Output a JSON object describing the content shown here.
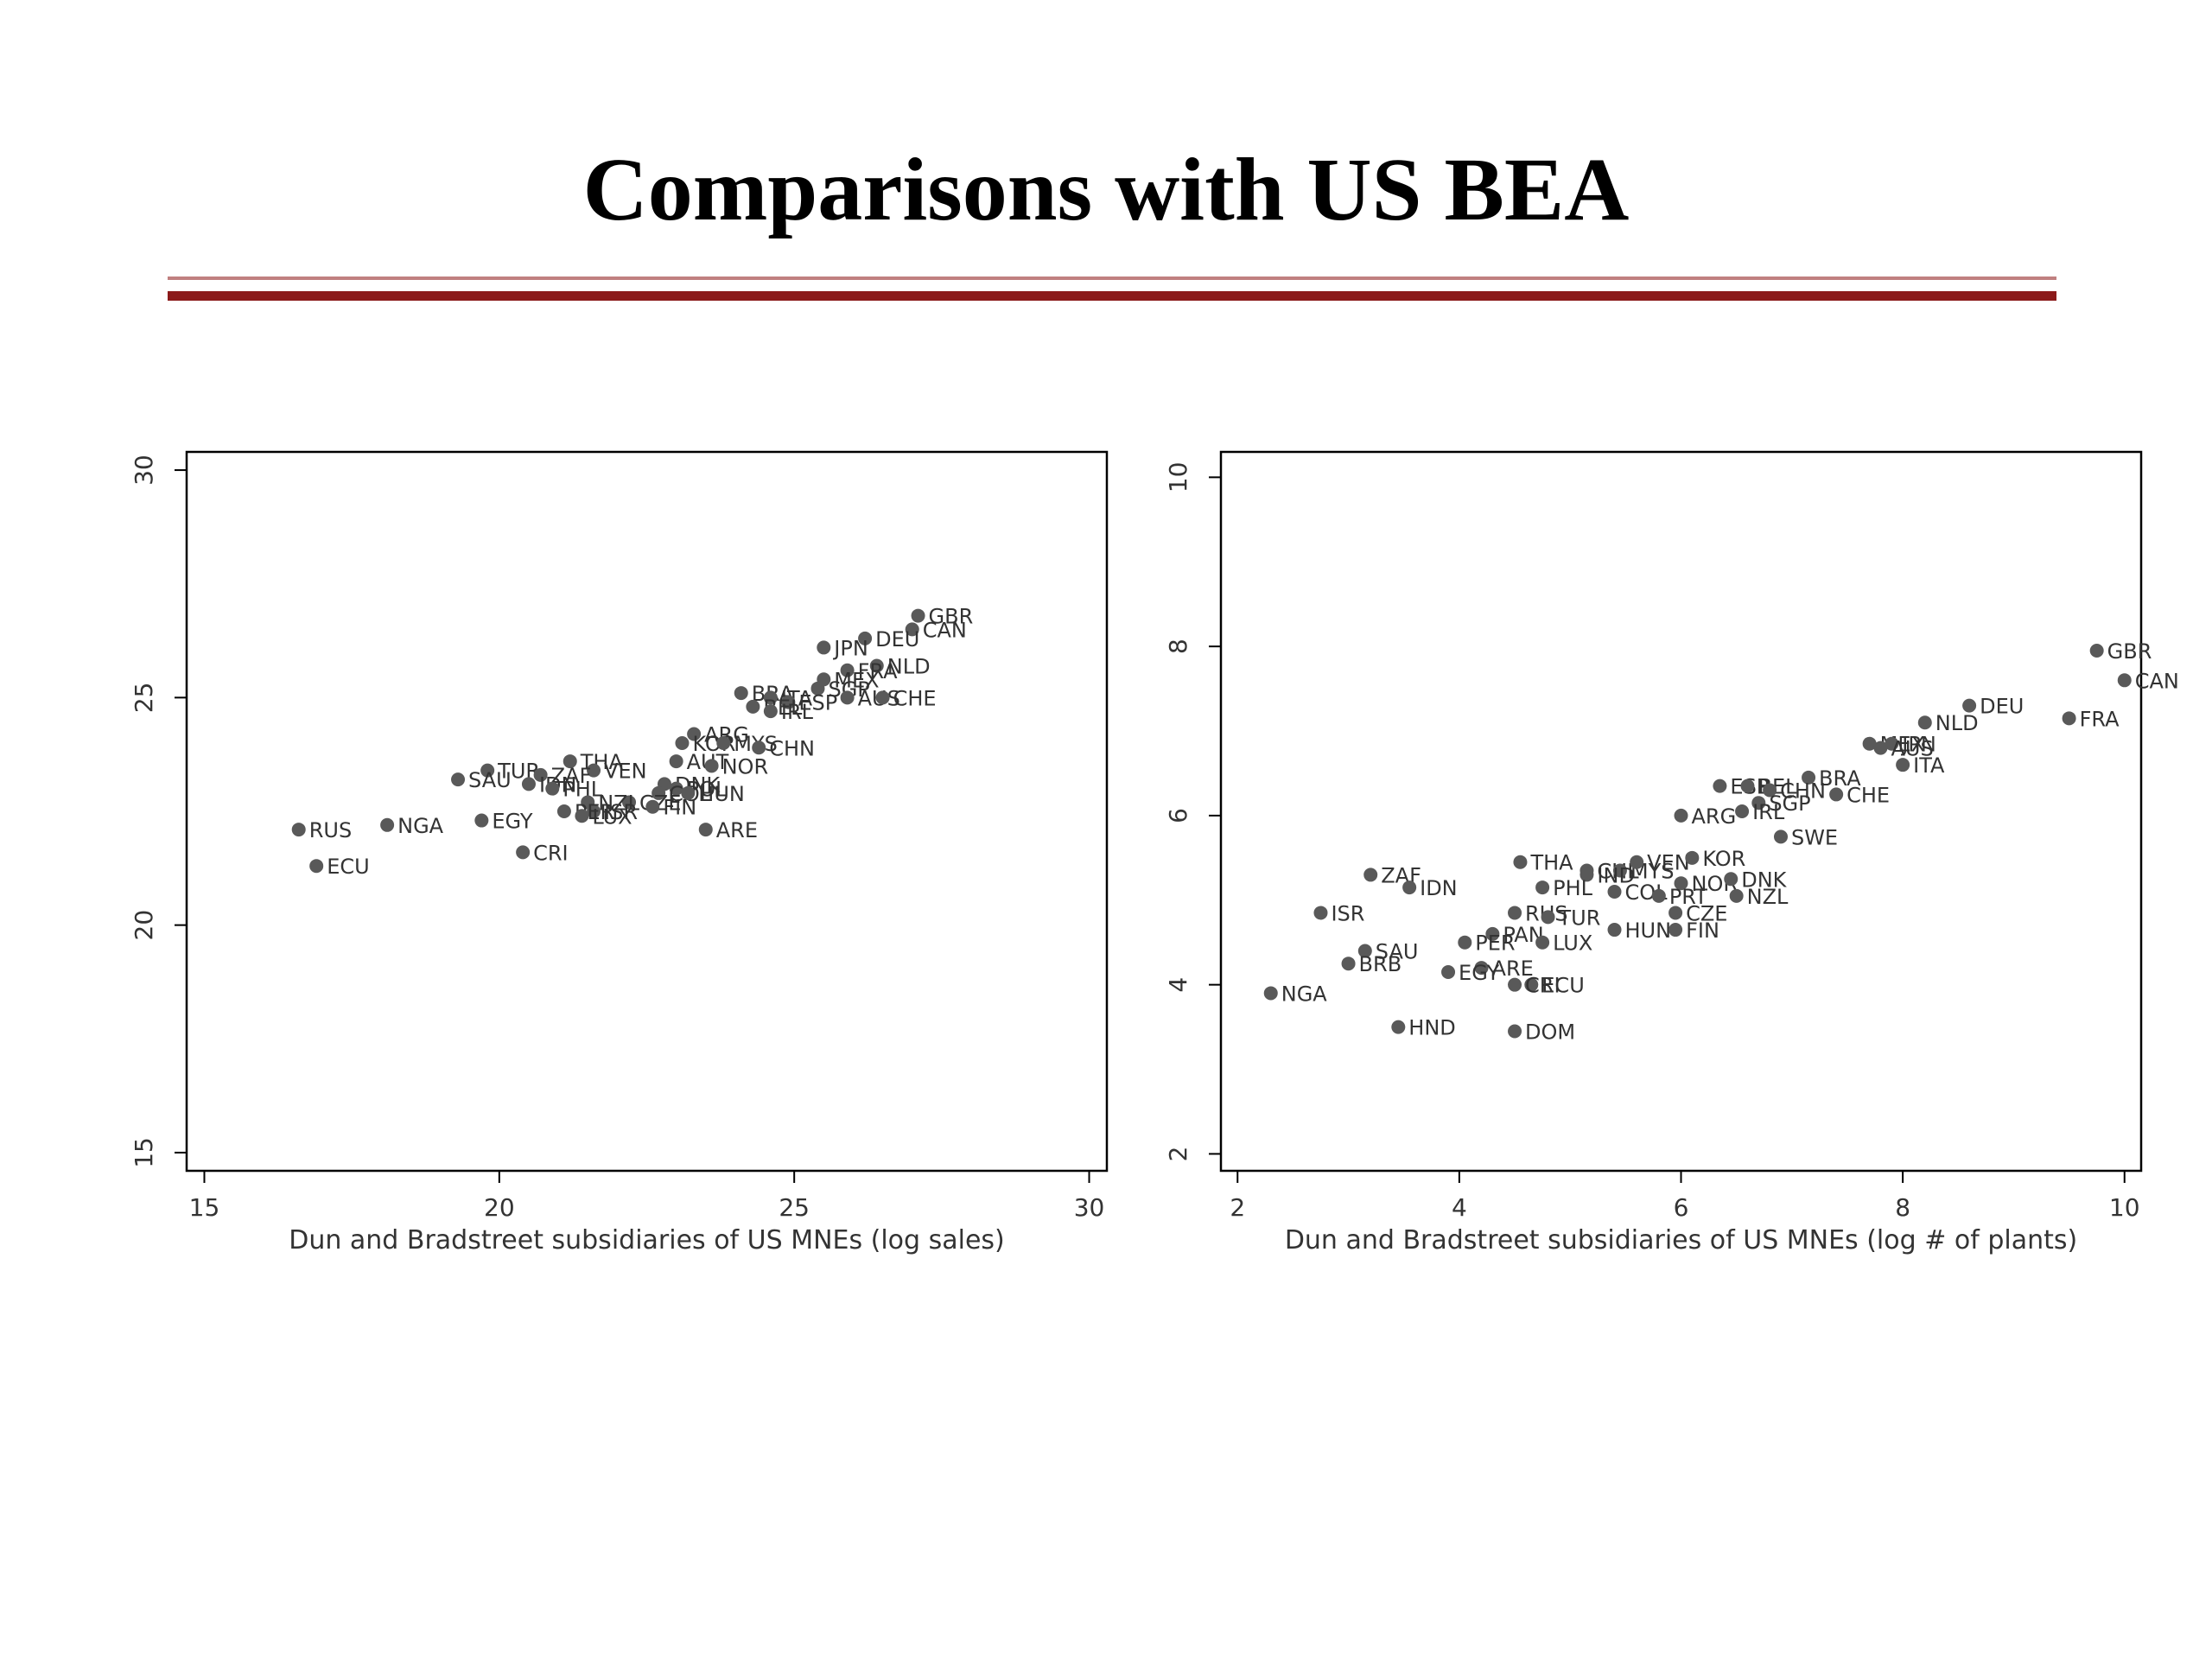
{
  "slide": {
    "title": "Comparisons with US BEA",
    "accent_color": "#8b1a1a",
    "thin_rule_color": "#c08080"
  },
  "chart_data": [
    {
      "type": "scatter",
      "title": "",
      "xlabel": "Dun and Bradstreet subsidiaries of US MNEs (log sales)",
      "ylabel": "",
      "xlim": [
        14.7,
        30.3
      ],
      "ylim": [
        14.6,
        30.4
      ],
      "xticks": [
        15,
        20,
        25,
        30
      ],
      "yticks": [
        15,
        20,
        25,
        30
      ],
      "grid": false,
      "marker_color": "#595959",
      "points": [
        {
          "x": 27.1,
          "y": 26.8,
          "label": "GBR"
        },
        {
          "x": 27.0,
          "y": 26.5,
          "label": "CAN"
        },
        {
          "x": 26.2,
          "y": 26.3,
          "label": "DEU"
        },
        {
          "x": 25.5,
          "y": 26.1,
          "label": "JPN"
        },
        {
          "x": 26.4,
          "y": 25.7,
          "label": "NLD"
        },
        {
          "x": 25.9,
          "y": 25.6,
          "label": "FRA"
        },
        {
          "x": 25.5,
          "y": 25.4,
          "label": "MEX"
        },
        {
          "x": 25.4,
          "y": 25.2,
          "label": "SGP"
        },
        {
          "x": 25.9,
          "y": 25.0,
          "label": "AUS"
        },
        {
          "x": 26.5,
          "y": 25.0,
          "label": "CHE"
        },
        {
          "x": 24.1,
          "y": 25.1,
          "label": "BRA"
        },
        {
          "x": 24.6,
          "y": 25.0,
          "label": "ITA"
        },
        {
          "x": 24.9,
          "y": 24.9,
          "label": "ESP"
        },
        {
          "x": 24.3,
          "y": 24.8,
          "label": "BEL"
        },
        {
          "x": 24.6,
          "y": 24.7,
          "label": "IRL"
        },
        {
          "x": 23.3,
          "y": 24.2,
          "label": "ARG"
        },
        {
          "x": 23.1,
          "y": 24.0,
          "label": "KOR"
        },
        {
          "x": 23.8,
          "y": 24.0,
          "label": "MYS"
        },
        {
          "x": 24.4,
          "y": 23.9,
          "label": "CHN"
        },
        {
          "x": 23.0,
          "y": 23.6,
          "label": "AUT"
        },
        {
          "x": 23.6,
          "y": 23.5,
          "label": "NOR"
        },
        {
          "x": 21.2,
          "y": 23.6,
          "label": "THA"
        },
        {
          "x": 21.6,
          "y": 23.4,
          "label": "VEN"
        },
        {
          "x": 19.8,
          "y": 23.4,
          "label": "TUR"
        },
        {
          "x": 20.7,
          "y": 23.3,
          "label": "ZAF"
        },
        {
          "x": 19.3,
          "y": 23.2,
          "label": "SAU"
        },
        {
          "x": 20.5,
          "y": 23.1,
          "label": "IDN"
        },
        {
          "x": 20.9,
          "y": 23.0,
          "label": "PHL"
        },
        {
          "x": 22.8,
          "y": 23.1,
          "label": "DNK"
        },
        {
          "x": 23.0,
          "y": 23.0,
          "label": "POL"
        },
        {
          "x": 22.7,
          "y": 22.9,
          "label": "COL"
        },
        {
          "x": 23.2,
          "y": 22.9,
          "label": "HUN"
        },
        {
          "x": 22.2,
          "y": 22.7,
          "label": "CZE"
        },
        {
          "x": 22.6,
          "y": 22.6,
          "label": "FIN"
        },
        {
          "x": 21.5,
          "y": 22.7,
          "label": "NZL"
        },
        {
          "x": 21.6,
          "y": 22.5,
          "label": "ISR"
        },
        {
          "x": 21.1,
          "y": 22.5,
          "label": "PER"
        },
        {
          "x": 21.4,
          "y": 22.4,
          "label": "LUX"
        },
        {
          "x": 16.6,
          "y": 22.1,
          "label": "RUS"
        },
        {
          "x": 18.1,
          "y": 22.2,
          "label": "NGA"
        },
        {
          "x": 19.7,
          "y": 22.3,
          "label": "EGY"
        },
        {
          "x": 23.5,
          "y": 22.1,
          "label": "ARE"
        },
        {
          "x": 20.4,
          "y": 21.6,
          "label": "CRI"
        },
        {
          "x": 16.9,
          "y": 21.3,
          "label": "ECU"
        }
      ]
    },
    {
      "type": "scatter",
      "title": "",
      "xlabel": "Dun and Bradstreet subsidiaries of US MNEs (log # of plants)",
      "ylabel": "",
      "xlim": [
        1.85,
        10.15
      ],
      "ylim": [
        1.8,
        10.3
      ],
      "xticks": [
        2,
        4,
        6,
        8,
        10
      ],
      "yticks": [
        2,
        4,
        6,
        8,
        10
      ],
      "grid": false,
      "marker_color": "#595959",
      "points": [
        {
          "x": 9.75,
          "y": 7.95,
          "label": "GBR"
        },
        {
          "x": 10.0,
          "y": 7.6,
          "label": "CAN"
        },
        {
          "x": 9.5,
          "y": 7.15,
          "label": "FRA"
        },
        {
          "x": 8.6,
          "y": 7.3,
          "label": "DEU"
        },
        {
          "x": 8.2,
          "y": 7.1,
          "label": "NLD"
        },
        {
          "x": 7.7,
          "y": 6.85,
          "label": "MEX"
        },
        {
          "x": 7.9,
          "y": 6.85,
          "label": "JPN"
        },
        {
          "x": 7.8,
          "y": 6.8,
          "label": "AUS"
        },
        {
          "x": 8.0,
          "y": 6.6,
          "label": "ITA"
        },
        {
          "x": 7.15,
          "y": 6.45,
          "label": "BRA"
        },
        {
          "x": 7.4,
          "y": 6.25,
          "label": "CHE"
        },
        {
          "x": 6.35,
          "y": 6.35,
          "label": "ESP"
        },
        {
          "x": 6.6,
          "y": 6.35,
          "label": "BEL"
        },
        {
          "x": 6.8,
          "y": 6.3,
          "label": "CHN"
        },
        {
          "x": 6.7,
          "y": 6.15,
          "label": "SGP"
        },
        {
          "x": 6.0,
          "y": 6.0,
          "label": "ARG"
        },
        {
          "x": 6.55,
          "y": 6.05,
          "label": "IRL"
        },
        {
          "x": 6.9,
          "y": 5.75,
          "label": "SWE"
        },
        {
          "x": 4.55,
          "y": 5.45,
          "label": "THA"
        },
        {
          "x": 5.15,
          "y": 5.35,
          "label": "CHL"
        },
        {
          "x": 5.45,
          "y": 5.35,
          "label": "MYS"
        },
        {
          "x": 5.6,
          "y": 5.45,
          "label": "VEN"
        },
        {
          "x": 6.1,
          "y": 5.5,
          "label": "KOR"
        },
        {
          "x": 6.0,
          "y": 5.2,
          "label": "NOR"
        },
        {
          "x": 6.45,
          "y": 5.25,
          "label": "DNK"
        },
        {
          "x": 6.5,
          "y": 5.05,
          "label": "NZL"
        },
        {
          "x": 5.15,
          "y": 5.3,
          "label": "IND"
        },
        {
          "x": 3.2,
          "y": 5.3,
          "label": "ZAF"
        },
        {
          "x": 3.55,
          "y": 5.15,
          "label": "IDN"
        },
        {
          "x": 4.75,
          "y": 5.15,
          "label": "PHL"
        },
        {
          "x": 5.4,
          "y": 5.1,
          "label": "COL"
        },
        {
          "x": 5.8,
          "y": 5.05,
          "label": "PRT"
        },
        {
          "x": 2.75,
          "y": 4.85,
          "label": "ISR"
        },
        {
          "x": 4.5,
          "y": 4.85,
          "label": "RUS"
        },
        {
          "x": 4.8,
          "y": 4.8,
          "label": "TUR"
        },
        {
          "x": 5.95,
          "y": 4.85,
          "label": "CZE"
        },
        {
          "x": 5.4,
          "y": 4.65,
          "label": "HUN"
        },
        {
          "x": 5.95,
          "y": 4.65,
          "label": "FIN"
        },
        {
          "x": 4.3,
          "y": 4.6,
          "label": "PAN"
        },
        {
          "x": 4.05,
          "y": 4.5,
          "label": "PER"
        },
        {
          "x": 4.75,
          "y": 4.5,
          "label": "LUX"
        },
        {
          "x": 3.15,
          "y": 4.4,
          "label": "SAU"
        },
        {
          "x": 3.0,
          "y": 4.25,
          "label": "BRB"
        },
        {
          "x": 4.2,
          "y": 4.2,
          "label": "ARE"
        },
        {
          "x": 3.9,
          "y": 4.15,
          "label": "EGY"
        },
        {
          "x": 4.65,
          "y": 4.0,
          "label": "ECU"
        },
        {
          "x": 4.5,
          "y": 4.0,
          "label": "CRI"
        },
        {
          "x": 2.3,
          "y": 3.9,
          "label": "NGA"
        },
        {
          "x": 3.45,
          "y": 3.5,
          "label": "HND"
        },
        {
          "x": 4.5,
          "y": 3.45,
          "label": "DOM"
        }
      ]
    }
  ]
}
